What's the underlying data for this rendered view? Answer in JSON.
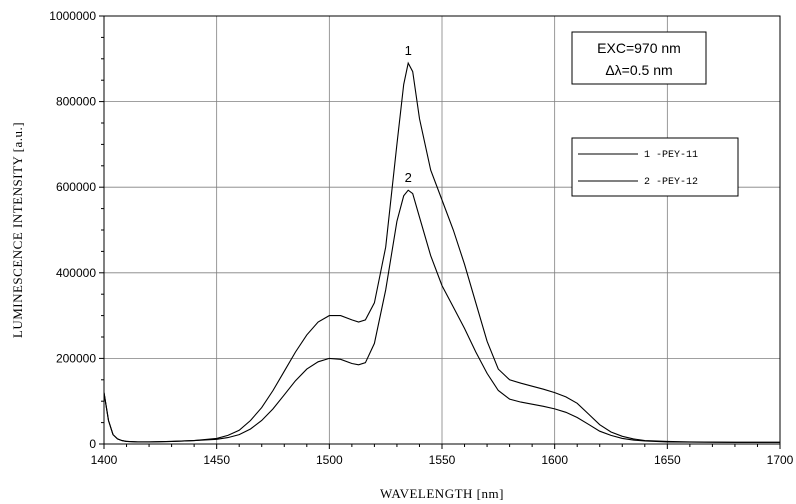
{
  "chart_data": {
    "type": "line",
    "xlabel": "WAVELENGTH  [nm]",
    "ylabel": "LUMINESCENCE  INTENSITY  [a.u.]",
    "xlim": [
      1400,
      1700
    ],
    "ylim": [
      0,
      1000000
    ],
    "x_ticks": [
      1400,
      1450,
      1500,
      1550,
      1600,
      1650,
      1700
    ],
    "y_ticks": [
      0,
      200000,
      400000,
      600000,
      800000,
      1000000
    ],
    "y_tick_labels": [
      "0",
      "200000",
      "400000",
      "600000",
      "800000",
      "1000000"
    ],
    "grid": true,
    "legend_position": "right",
    "annotation": {
      "line1": "EXC=970 nm",
      "line2": "Δλ=0.5 nm"
    },
    "series": [
      {
        "name": "1 -PEY-11",
        "curve_label": "1",
        "peak": [
          1535,
          890000
        ],
        "x": [
          1400,
          1402,
          1404,
          1406,
          1408,
          1410,
          1415,
          1420,
          1430,
          1440,
          1450,
          1455,
          1460,
          1465,
          1470,
          1475,
          1480,
          1485,
          1490,
          1495,
          1500,
          1505,
          1510,
          1513,
          1516,
          1520,
          1525,
          1530,
          1533,
          1535,
          1537,
          1540,
          1545,
          1550,
          1555,
          1560,
          1565,
          1570,
          1575,
          1580,
          1585,
          1590,
          1595,
          1600,
          1605,
          1610,
          1615,
          1620,
          1625,
          1630,
          1635,
          1640,
          1650,
          1660,
          1680,
          1700
        ],
        "y": [
          120000,
          55000,
          22000,
          12000,
          8000,
          6000,
          5000,
          5000,
          6000,
          8000,
          13000,
          20000,
          32000,
          55000,
          85000,
          125000,
          170000,
          215000,
          255000,
          285000,
          300000,
          300000,
          290000,
          285000,
          290000,
          330000,
          460000,
          700000,
          840000,
          890000,
          870000,
          760000,
          640000,
          570000,
          500000,
          420000,
          330000,
          240000,
          175000,
          150000,
          142000,
          135000,
          128000,
          120000,
          110000,
          95000,
          70000,
          45000,
          28000,
          18000,
          12000,
          8000,
          6000,
          5000,
          4000,
          4000
        ]
      },
      {
        "name": "2 -PEY-12",
        "curve_label": "2",
        "peak": [
          1535,
          593000
        ],
        "x": [
          1400,
          1402,
          1404,
          1406,
          1408,
          1410,
          1415,
          1420,
          1430,
          1440,
          1450,
          1455,
          1460,
          1465,
          1470,
          1475,
          1480,
          1485,
          1490,
          1495,
          1500,
          1505,
          1510,
          1513,
          1516,
          1520,
          1525,
          1530,
          1533,
          1535,
          1537,
          1540,
          1545,
          1550,
          1555,
          1560,
          1565,
          1570,
          1575,
          1580,
          1585,
          1590,
          1595,
          1600,
          1605,
          1610,
          1615,
          1620,
          1625,
          1630,
          1635,
          1640,
          1650,
          1660,
          1680,
          1700
        ],
        "y": [
          120000,
          55000,
          22000,
          12000,
          8000,
          6000,
          5000,
          5000,
          6000,
          8000,
          11000,
          15000,
          22000,
          35000,
          55000,
          82000,
          115000,
          148000,
          175000,
          192000,
          200000,
          198000,
          188000,
          185000,
          190000,
          235000,
          360000,
          520000,
          580000,
          593000,
          585000,
          530000,
          440000,
          370000,
          320000,
          270000,
          215000,
          165000,
          125000,
          105000,
          98000,
          93000,
          88000,
          82000,
          74000,
          62000,
          46000,
          30000,
          20000,
          13000,
          9000,
          7000,
          5000,
          4500,
          4000,
          4000
        ]
      }
    ]
  }
}
